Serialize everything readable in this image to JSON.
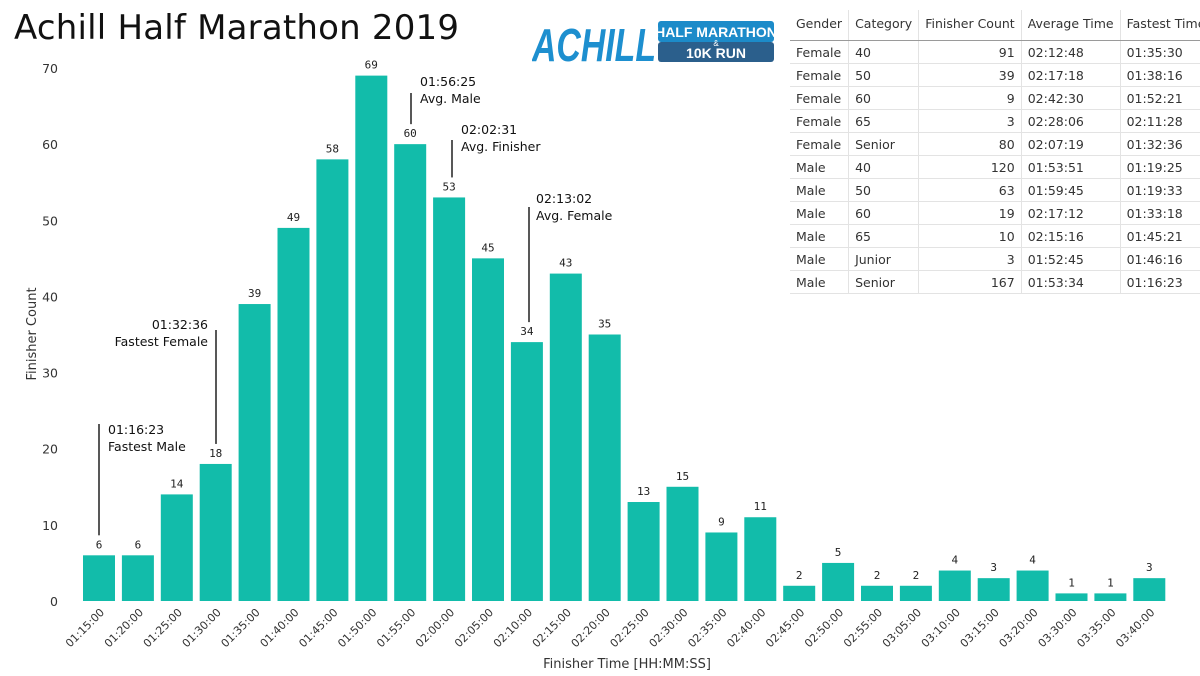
{
  "page": {
    "title": "Achill Half Marathon 2019"
  },
  "logo": {
    "word": "ACHILL",
    "line1": "HALF MARATHON",
    "amp": "&",
    "line2": "10K RUN",
    "colors": {
      "word": "#1d8fcf",
      "badge": "#1c8bc9",
      "badge_dark": "#2b5f8c",
      "text": "#ffffff"
    }
  },
  "colors": {
    "bar": "#12bcaa",
    "text": "#222222",
    "annotation_line": "#111111"
  },
  "table": {
    "columns": [
      "Gender",
      "Category",
      "Finisher Count",
      "Average Time",
      "Fastest Time"
    ],
    "rows": [
      [
        "Female",
        "40",
        "91",
        "02:12:48",
        "01:35:30"
      ],
      [
        "Female",
        "50",
        "39",
        "02:17:18",
        "01:38:16"
      ],
      [
        "Female",
        "60",
        "9",
        "02:42:30",
        "01:52:21"
      ],
      [
        "Female",
        "65",
        "3",
        "02:28:06",
        "02:11:28"
      ],
      [
        "Female",
        "Senior",
        "80",
        "02:07:19",
        "01:32:36"
      ],
      [
        "Male",
        "40",
        "120",
        "01:53:51",
        "01:19:25"
      ],
      [
        "Male",
        "50",
        "63",
        "01:59:45",
        "01:19:33"
      ],
      [
        "Male",
        "60",
        "19",
        "02:17:12",
        "01:33:18"
      ],
      [
        "Male",
        "65",
        "10",
        "02:15:16",
        "01:45:21"
      ],
      [
        "Male",
        "Junior",
        "3",
        "01:52:45",
        "01:46:16"
      ],
      [
        "Male",
        "Senior",
        "167",
        "01:53:34",
        "01:16:23"
      ]
    ]
  },
  "chart_data": {
    "type": "bar",
    "title": "Achill Half Marathon 2019",
    "xlabel": "Finisher Time [HH:MM:SS]",
    "ylabel": "Finisher Count",
    "ylim": [
      0,
      70
    ],
    "yticks": [
      0,
      10,
      20,
      30,
      40,
      50,
      60,
      70
    ],
    "grid": false,
    "categories": [
      "01:15:00",
      "01:20:00",
      "01:25:00",
      "01:30:00",
      "01:35:00",
      "01:40:00",
      "01:45:00",
      "01:50:00",
      "01:55:00",
      "02:00:00",
      "02:05:00",
      "02:10:00",
      "02:15:00",
      "02:20:00",
      "02:25:00",
      "02:30:00",
      "02:35:00",
      "02:40:00",
      "02:45:00",
      "02:50:00",
      "02:55:00",
      "03:05:00",
      "03:10:00",
      "03:15:00",
      "03:20:00",
      "03:30:00",
      "03:35:00",
      "03:40:00"
    ],
    "values": [
      6,
      6,
      14,
      18,
      39,
      49,
      58,
      69,
      60,
      53,
      45,
      34,
      43,
      35,
      13,
      15,
      9,
      11,
      2,
      5,
      2,
      2,
      4,
      3,
      4,
      1,
      1,
      3
    ],
    "annotations": [
      {
        "time": "01:16:23",
        "label": "Fastest Male",
        "bar_index": 0
      },
      {
        "time": "01:32:36",
        "label": "Fastest Female",
        "bar_index": 3
      },
      {
        "time": "01:56:25",
        "label": "Avg. Male",
        "bar_index": 8
      },
      {
        "time": "02:02:31",
        "label": "Avg. Finisher",
        "bar_index": 9
      },
      {
        "time": "02:13:02",
        "label": "Avg. Female",
        "bar_index": 11
      }
    ]
  }
}
